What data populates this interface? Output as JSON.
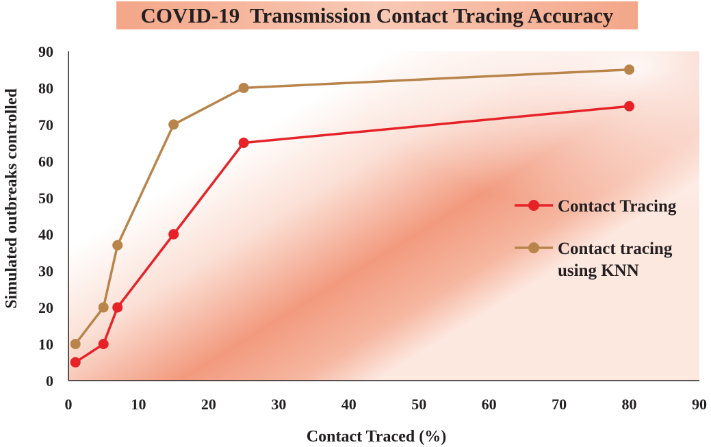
{
  "chart_data": {
    "type": "line",
    "title": "COVID-19  Transmission Contact Tracing Accuracy",
    "xlabel": "Contact Traced (%)",
    "ylabel": "Simulated outbreaks controlled",
    "xlim": [
      0,
      90
    ],
    "ylim": [
      0,
      90
    ],
    "xticks": [
      0,
      10,
      20,
      30,
      40,
      50,
      60,
      70,
      80,
      90
    ],
    "yticks": [
      0,
      10,
      20,
      30,
      40,
      50,
      60,
      70,
      80,
      90
    ],
    "grid": false,
    "legend_position": "right",
    "series": [
      {
        "name": "Contact Tracing",
        "color": "#e52228",
        "x": [
          1,
          5,
          7,
          15,
          25,
          80
        ],
        "y": [
          5,
          10,
          20,
          40,
          65,
          75
        ]
      },
      {
        "name": "Contact tracing using KNN",
        "legend_lines": [
          "Contact tracing",
          "using KNN"
        ],
        "color": "#b8844a",
        "x": [
          1,
          5,
          7,
          15,
          25,
          80
        ],
        "y": [
          10,
          20,
          37,
          70,
          80,
          85
        ]
      }
    ]
  }
}
